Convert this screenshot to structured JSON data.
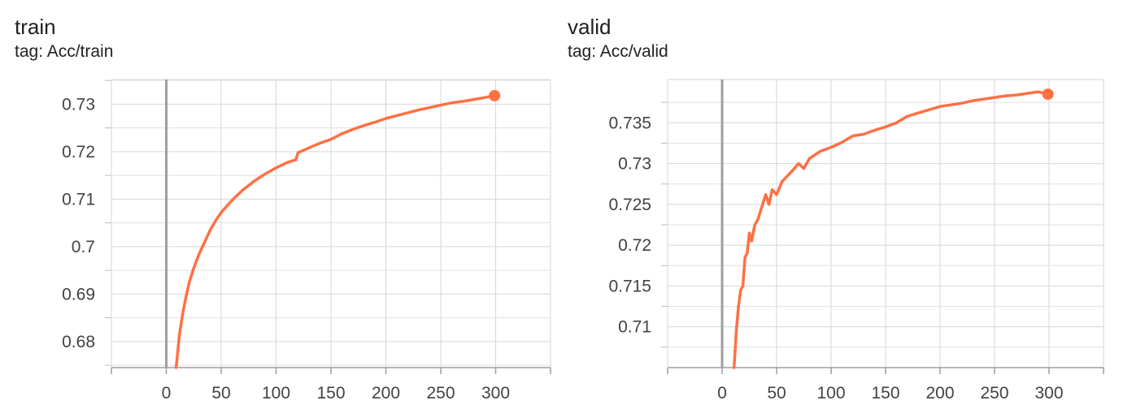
{
  "cards": [
    {
      "title": "train",
      "tag": "tag: Acc/train",
      "accent_color": "#ff7043"
    },
    {
      "title": "valid",
      "tag": "tag: Acc/valid",
      "accent_color": "#ff7043"
    }
  ],
  "chart_data": [
    {
      "type": "line",
      "title": "train",
      "xlabel": "",
      "ylabel": "",
      "xlim": [
        -50,
        350
      ],
      "ylim": [
        0.6745,
        0.7352
      ],
      "grid": true,
      "x_ticks": [
        0,
        50,
        100,
        150,
        200,
        250,
        300
      ],
      "y_ticks": [
        0.68,
        0.69,
        0.7,
        0.71,
        0.72,
        0.73
      ],
      "y_tick_labels": [
        "0.68",
        "0.69",
        "0.7",
        "0.71",
        "0.72",
        "0.73"
      ],
      "series": [
        {
          "x": [
            9,
            12,
            15,
            18,
            21,
            25,
            30,
            35,
            40,
            45,
            50,
            60,
            70,
            80,
            90,
            100,
            110,
            118,
            120,
            130,
            140,
            150,
            160,
            170,
            180,
            190,
            200,
            210,
            220,
            230,
            240,
            250,
            260,
            270,
            280,
            290,
            299
          ],
          "y": [
            0.6745,
            0.6815,
            0.686,
            0.6895,
            0.6925,
            0.6955,
            0.6985,
            0.701,
            0.7035,
            0.7055,
            0.7072,
            0.7098,
            0.712,
            0.7138,
            0.7153,
            0.7166,
            0.7177,
            0.7183,
            0.7198,
            0.7208,
            0.7218,
            0.7226,
            0.7238,
            0.7247,
            0.7255,
            0.7262,
            0.727,
            0.7276,
            0.7282,
            0.7288,
            0.7293,
            0.7298,
            0.7303,
            0.7306,
            0.731,
            0.7314,
            0.7318
          ]
        }
      ]
    },
    {
      "type": "line",
      "title": "valid",
      "xlabel": "",
      "ylabel": "",
      "xlim": [
        -50,
        350
      ],
      "ylim": [
        0.705,
        0.7403
      ],
      "grid": true,
      "x_ticks": [
        0,
        50,
        100,
        150,
        200,
        250,
        300
      ],
      "y_ticks": [
        0.71,
        0.715,
        0.72,
        0.725,
        0.73,
        0.735
      ],
      "y_tick_labels": [
        "0.71",
        "0.715",
        "0.72",
        "0.725",
        "0.73",
        "0.735"
      ],
      "series": [
        {
          "x": [
            11,
            13,
            15,
            17,
            19,
            21,
            23,
            25,
            27,
            30,
            33,
            36,
            40,
            43,
            46,
            50,
            55,
            60,
            65,
            70,
            75,
            80,
            90,
            100,
            110,
            120,
            130,
            140,
            150,
            160,
            170,
            180,
            190,
            200,
            210,
            220,
            230,
            240,
            250,
            260,
            270,
            280,
            290,
            299
          ],
          "y": [
            0.705,
            0.7095,
            0.7125,
            0.7145,
            0.715,
            0.7185,
            0.719,
            0.7215,
            0.7205,
            0.7225,
            0.7232,
            0.7245,
            0.7262,
            0.725,
            0.7268,
            0.7262,
            0.7278,
            0.7285,
            0.7292,
            0.73,
            0.7294,
            0.7306,
            0.7315,
            0.732,
            0.7326,
            0.7334,
            0.7336,
            0.7341,
            0.7345,
            0.735,
            0.7358,
            0.7362,
            0.7366,
            0.737,
            0.7372,
            0.7374,
            0.7377,
            0.7379,
            0.7381,
            0.7383,
            0.7384,
            0.7386,
            0.7388,
            0.7385
          ]
        }
      ]
    }
  ]
}
